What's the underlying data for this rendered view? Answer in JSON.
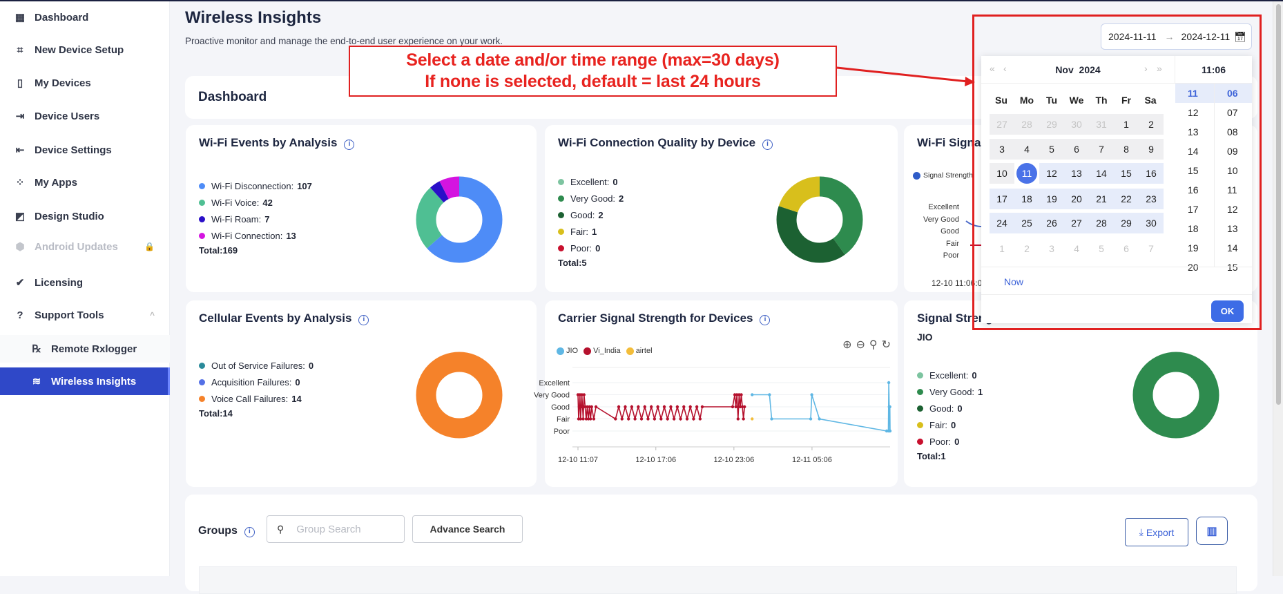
{
  "sidebar": {
    "items": [
      {
        "label": "Dashboard",
        "icon": "dashboard-icon",
        "glyph": "▦"
      },
      {
        "label": "New Device Setup",
        "icon": "qr-code-icon",
        "glyph": "⌗"
      },
      {
        "label": "My Devices",
        "icon": "phone-icon",
        "glyph": "▯"
      },
      {
        "label": "Device Users",
        "icon": "device-user-icon",
        "glyph": "⇥"
      },
      {
        "label": "Device Settings",
        "icon": "device-settings-icon",
        "glyph": "⇤"
      },
      {
        "label": "My Apps",
        "icon": "apps-icon",
        "glyph": "⁘"
      },
      {
        "label": "Design Studio",
        "icon": "design-studio-icon",
        "glyph": "◩"
      },
      {
        "label": "Android Updates",
        "icon": "shield-icon",
        "glyph": "⬢",
        "disabled": true,
        "trail": "🔒"
      },
      {
        "label": "Licensing",
        "icon": "verified-badge-icon",
        "glyph": "✔"
      },
      {
        "label": "Support Tools",
        "icon": "help-icon",
        "glyph": "?",
        "trail": "^"
      },
      {
        "label": "Remote Rxlogger",
        "icon": "rx-icon",
        "glyph": "℞",
        "sub": true
      },
      {
        "label": "Wireless Insights",
        "icon": "wireless-icon",
        "glyph": "≋",
        "sub": true,
        "active": true
      }
    ]
  },
  "header": {
    "title": "Wireless Insights",
    "subtitle": "Proactive monitor and manage the end-to-end user experience on your work."
  },
  "annotation": {
    "line1": "Select a date and/or time range (max=30 days)",
    "line2": "If none is selected, default = last 24 hours",
    "color": "#e02020"
  },
  "dashboard_label": "Dashboard",
  "date_range": {
    "start": "2024-11-11",
    "arrow": "→",
    "end": "2024-12-11"
  },
  "calendar": {
    "month_label": "Nov  2024",
    "time_label": "11:06",
    "day_names": [
      "Su",
      "Mo",
      "Tu",
      "We",
      "Th",
      "Fr",
      "Sa"
    ],
    "weeks": [
      [
        [
          "27",
          "muted gray"
        ],
        [
          "28",
          "muted gray"
        ],
        [
          "29",
          "muted gray"
        ],
        [
          "30",
          "muted gray"
        ],
        [
          "31",
          "muted gray"
        ],
        [
          "1",
          "gray"
        ],
        [
          "2",
          "gray"
        ]
      ],
      [
        [
          "3",
          "gray"
        ],
        [
          "4",
          "gray"
        ],
        [
          "5",
          "gray"
        ],
        [
          "6",
          "gray"
        ],
        [
          "7",
          "gray"
        ],
        [
          "8",
          "gray"
        ],
        [
          "9",
          "gray"
        ]
      ],
      [
        [
          "10",
          "gray"
        ],
        [
          "11",
          "sel"
        ],
        [
          "12",
          "range"
        ],
        [
          "13",
          "range"
        ],
        [
          "14",
          "range"
        ],
        [
          "15",
          "range"
        ],
        [
          "16",
          "range"
        ]
      ],
      [
        [
          "17",
          "range"
        ],
        [
          "18",
          "range"
        ],
        [
          "19",
          "range"
        ],
        [
          "20",
          "range"
        ],
        [
          "21",
          "range"
        ],
        [
          "22",
          "range"
        ],
        [
          "23",
          "range"
        ]
      ],
      [
        [
          "24",
          "range"
        ],
        [
          "25",
          "range"
        ],
        [
          "26",
          "range"
        ],
        [
          "27",
          "range"
        ],
        [
          "28",
          "range"
        ],
        [
          "29",
          "range"
        ],
        [
          "30",
          "range"
        ]
      ],
      [
        [
          "1",
          "muted"
        ],
        [
          "2",
          "muted"
        ],
        [
          "3",
          "muted"
        ],
        [
          "4",
          "muted"
        ],
        [
          "5",
          "muted"
        ],
        [
          "6",
          "muted"
        ],
        [
          "7",
          "muted"
        ]
      ]
    ],
    "hours": [
      "11",
      "12",
      "13",
      "14",
      "15",
      "16",
      "17",
      "18",
      "19",
      "20"
    ],
    "minutes": [
      "06",
      "07",
      "08",
      "09",
      "10",
      "11",
      "12",
      "13",
      "14",
      "15"
    ],
    "selected_hour": "11",
    "selected_minute": "06",
    "now_label": "Now",
    "ok_label": "OK"
  },
  "cards": {
    "wifi_events": {
      "title": "Wi-Fi Events by Analysis",
      "total": "Total:169",
      "items": [
        {
          "label": "Wi-Fi Disconnection:",
          "value": 107,
          "color": "#4e8cf7"
        },
        {
          "label": "Wi-Fi Voice:",
          "value": 42,
          "color": "#4fbf93"
        },
        {
          "label": "Wi-Fi Roam:",
          "value": 7,
          "color": "#2a0fc8"
        },
        {
          "label": "Wi-Fi Connection:",
          "value": 13,
          "color": "#d414e0"
        }
      ]
    },
    "wifi_quality": {
      "title": "Wi-Fi Connection Quality by Device",
      "total": "Total:5",
      "items": [
        {
          "label": "Excellent:",
          "value": 0,
          "color": "#7dc4a0"
        },
        {
          "label": "Very Good:",
          "value": 2,
          "color": "#2e8b4e"
        },
        {
          "label": "Good:",
          "value": 2,
          "color": "#1c6132"
        },
        {
          "label": "Fair:",
          "value": 1,
          "color": "#d8bf1c"
        },
        {
          "label": "Poor:",
          "value": 0,
          "color": "#c8102e"
        }
      ]
    },
    "wifi_signal": {
      "title": "Wi-Fi Signal",
      "legend": "Signal Strength",
      "legend_color": "#2f5cc8",
      "levels": [
        "Excellent",
        "Very Good",
        "Good",
        "Fair",
        "Poor"
      ],
      "x_label": "12-10 11:06:0"
    },
    "cellular_events": {
      "title": "Cellular Events by Analysis",
      "total": "Total:14",
      "items": [
        {
          "label": "Out of Service Failures:",
          "value": 0,
          "color": "#2a8a9a"
        },
        {
          "label": "Acquisition Failures:",
          "value": 0,
          "color": "#5470e6"
        },
        {
          "label": "Voice Call Failures:",
          "value": 14,
          "color": "#f5822a"
        }
      ]
    },
    "carrier_signal": {
      "title": "Carrier Signal Strength for Devices",
      "tools": [
        "zoom-in-icon",
        "zoom-out-icon",
        "zoom-select-icon",
        "reset-icon"
      ]
    },
    "signal_strength": {
      "title": "Signal Strength",
      "carrier": "JIO",
      "total": "Total:1",
      "items": [
        {
          "label": "Excellent:",
          "value": 0,
          "color": "#7dc4a0"
        },
        {
          "label": "Very Good:",
          "value": 1,
          "color": "#2e8b4e"
        },
        {
          "label": "Good:",
          "value": 0,
          "color": "#1c6132"
        },
        {
          "label": "Fair:",
          "value": 0,
          "color": "#d8bf1c"
        },
        {
          "label": "Poor:",
          "value": 0,
          "color": "#c8102e"
        }
      ]
    }
  },
  "chart_data": {
    "type": "line",
    "levels": {
      "1": "Poor",
      "2": "Fair",
      "3": "Good",
      "4": "Very Good",
      "5": "Excellent"
    },
    "xlim": [
      "12-10 11:07",
      "12-11 11:06"
    ],
    "x_ticks": [
      "12-10 11:07",
      "12-10 17:06",
      "12-10 23:06",
      "12-11 05:06"
    ],
    "grid": true,
    "legend": "top-left",
    "series": [
      {
        "name": "JIO",
        "color": "#5fb7e4",
        "points": [
          [
            "12-11 00:30",
            4
          ],
          [
            "12-11 01:50",
            4
          ],
          [
            "12-11 02:00",
            2
          ],
          [
            "12-11 05:00",
            2
          ],
          [
            "12-11 05:05",
            4
          ],
          [
            "12-11 05:40",
            2
          ],
          [
            "12-11 10:50",
            1
          ],
          [
            "12-11 10:58",
            1
          ],
          [
            "12-11 11:00",
            5
          ],
          [
            "12-11 11:02",
            3
          ],
          [
            "12-11 11:04",
            1
          ],
          [
            "12-11 11:05",
            3
          ],
          [
            "12-11 11:06",
            1
          ]
        ]
      },
      {
        "name": "Vi_India",
        "color": "#b5112d",
        "points": [
          [
            "12-10 11:07",
            4
          ],
          [
            "12-10 11:10",
            2
          ],
          [
            "12-10 11:13",
            3
          ],
          [
            "12-10 11:16",
            4
          ],
          [
            "12-10 11:19",
            2
          ],
          [
            "12-10 11:22",
            3
          ],
          [
            "12-10 11:25",
            4
          ],
          [
            "12-10 11:28",
            3
          ],
          [
            "12-10 11:31",
            2
          ],
          [
            "12-10 11:35",
            4
          ],
          [
            "12-10 11:40",
            3
          ],
          [
            "12-10 11:45",
            2
          ],
          [
            "12-10 11:50",
            3
          ],
          [
            "12-10 11:55",
            2
          ],
          [
            "12-10 12:00",
            3
          ],
          [
            "12-10 12:05",
            2
          ],
          [
            "12-10 12:10",
            3
          ],
          [
            "12-10 12:20",
            2
          ],
          [
            "12-10 12:30",
            3
          ],
          [
            "12-10 14:00",
            2
          ],
          [
            "12-10 14:15",
            3
          ],
          [
            "12-10 14:30",
            2
          ],
          [
            "12-10 14:45",
            3
          ],
          [
            "12-10 15:00",
            2
          ],
          [
            "12-10 15:15",
            3
          ],
          [
            "12-10 15:30",
            2
          ],
          [
            "12-10 15:45",
            3
          ],
          [
            "12-10 16:00",
            2
          ],
          [
            "12-10 16:15",
            3
          ],
          [
            "12-10 16:30",
            2
          ],
          [
            "12-10 16:45",
            3
          ],
          [
            "12-10 17:00",
            2
          ],
          [
            "12-10 17:15",
            3
          ],
          [
            "12-10 17:30",
            2
          ],
          [
            "12-10 17:45",
            3
          ],
          [
            "12-10 18:00",
            2
          ],
          [
            "12-10 18:15",
            3
          ],
          [
            "12-10 18:30",
            2
          ],
          [
            "12-10 18:45",
            3
          ],
          [
            "12-10 19:00",
            2
          ],
          [
            "12-10 19:15",
            3
          ],
          [
            "12-10 19:30",
            2
          ],
          [
            "12-10 19:45",
            3
          ],
          [
            "12-10 20:00",
            2
          ],
          [
            "12-10 20:15",
            3
          ],
          [
            "12-10 20:30",
            2
          ],
          [
            "12-10 20:40",
            3
          ],
          [
            "12-10 23:00",
            3
          ],
          [
            "12-10 23:10",
            4
          ],
          [
            "12-10 23:15",
            3
          ],
          [
            "12-10 23:20",
            4
          ],
          [
            "12-10 23:25",
            2
          ],
          [
            "12-10 23:30",
            4
          ],
          [
            "12-10 23:35",
            3
          ],
          [
            "12-10 23:40",
            4
          ],
          [
            "12-10 23:45",
            3
          ],
          [
            "12-10 23:50",
            2
          ],
          [
            "12-10 23:55",
            3
          ]
        ]
      },
      {
        "name": "airtel",
        "color": "#f3bd3a",
        "points": [
          [
            "12-11 00:30",
            2
          ]
        ]
      }
    ]
  },
  "groups": {
    "label": "Groups",
    "search_placeholder": "Group Search",
    "advance_search": "Advance Search",
    "export": "Export"
  }
}
